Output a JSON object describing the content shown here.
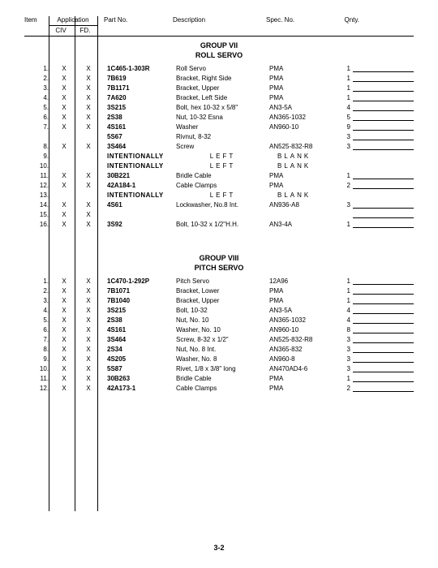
{
  "headers": {
    "item": "Item",
    "application": "Application",
    "civ": "CIV",
    "fd": "FD.",
    "partno": "Part No.",
    "description": "Description",
    "spec": "Spec. No.",
    "qty": "Qnty."
  },
  "group7": {
    "title": "GROUP VII",
    "subtitle": "ROLL SERVO",
    "rows": [
      {
        "n": "1.",
        "civ": "X",
        "fd": "X",
        "part": "1C465-1-303R",
        "desc": "Roll Servo",
        "spec": "PMA",
        "qty": "1"
      },
      {
        "n": "2.",
        "civ": "X",
        "fd": "X",
        "part": "7B619",
        "desc": "Bracket, Right Side",
        "spec": "PMA",
        "qty": "1"
      },
      {
        "n": "3.",
        "civ": "X",
        "fd": "X",
        "part": "7B1171",
        "desc": "Bracket, Upper",
        "spec": "PMA",
        "qty": "1"
      },
      {
        "n": "4.",
        "civ": "X",
        "fd": "X",
        "part": "7A620",
        "desc": "Bracket, Left Side",
        "spec": "PMA",
        "qty": "1"
      },
      {
        "n": "5.",
        "civ": "X",
        "fd": "X",
        "part": "3S215",
        "desc": "Bolt, hex 10-32 x 5/8\"",
        "spec": "AN3-5A",
        "qty": "4"
      },
      {
        "n": "6.",
        "civ": "X",
        "fd": "X",
        "part": "2S38",
        "desc": "Nut, 10-32 Esna",
        "spec": "AN365-1032",
        "qty": "5"
      },
      {
        "n": "7.",
        "civ": "X",
        "fd": "X",
        "part": "4S161",
        "desc": "Washer",
        "spec": "AN960-10",
        "qty": "9"
      },
      {
        "n": "",
        "civ": "",
        "fd": "",
        "part": "5S67",
        "desc": "Rivnut, 8-32",
        "spec": "",
        "qty": "3"
      },
      {
        "n": "8.",
        "civ": "X",
        "fd": "X",
        "part": "3S464",
        "desc": "Screw",
        "spec": "AN525-832-R8",
        "qty": "3"
      },
      {
        "n": "9.",
        "civ": "",
        "fd": "",
        "part": "INTENTIONALLY",
        "desc": "LEFT",
        "spec": "BLANK",
        "qty": "",
        "blank": true
      },
      {
        "n": "10.",
        "civ": "",
        "fd": "",
        "part": "INTENTIONALLY",
        "desc": "LEFT",
        "spec": "BLANK",
        "qty": "",
        "blank": true
      },
      {
        "n": "11.",
        "civ": "X",
        "fd": "X",
        "part": "30B221",
        "desc": "Bridle Cable",
        "spec": "PMA",
        "qty": "1"
      },
      {
        "n": "12.",
        "civ": "X",
        "fd": "X",
        "part": "42A184-1",
        "desc": "Cable Clamps",
        "spec": "PMA",
        "qty": "2"
      },
      {
        "n": "13.",
        "civ": "",
        "fd": "",
        "part": "INTENTIONALLY",
        "desc": "LEFT",
        "spec": "BLANK",
        "qty": "",
        "blank": true
      },
      {
        "n": "14.",
        "civ": "X",
        "fd": "X",
        "part": "4S61",
        "desc": "Lockwasher, No.8 Int.",
        "spec": "AN936-A8",
        "qty": "3"
      },
      {
        "n": "15.",
        "civ": "X",
        "fd": "X",
        "part": "",
        "desc": "",
        "spec": "",
        "qty": ""
      },
      {
        "n": "16.",
        "civ": "X",
        "fd": "X",
        "part": "3S92",
        "desc": "Bolt, 10-32 x 1/2\"H.H.",
        "spec": "AN3-4A",
        "qty": "1"
      }
    ]
  },
  "group8": {
    "title": "GROUP VIII",
    "subtitle": "PITCH SERVO",
    "rows": [
      {
        "n": "1.",
        "civ": "X",
        "fd": "X",
        "part": "1C470-1-292P",
        "desc": "Pitch Servo",
        "spec": "12A96",
        "qty": "1"
      },
      {
        "n": "2.",
        "civ": "X",
        "fd": "X",
        "part": "7B1071",
        "desc": "Bracket, Lower",
        "spec": "PMA",
        "qty": "1"
      },
      {
        "n": "3.",
        "civ": "X",
        "fd": "X",
        "part": "7B1040",
        "desc": "Bracket, Upper",
        "spec": "PMA",
        "qty": "1"
      },
      {
        "n": "4.",
        "civ": "X",
        "fd": "X",
        "part": "3S215",
        "desc": "Bolt, 10-32",
        "spec": "AN3-5A",
        "qty": "4"
      },
      {
        "n": "5.",
        "civ": "X",
        "fd": "X",
        "part": "2S38",
        "desc": "Nut, No. 10",
        "spec": "AN365-1032",
        "qty": "4"
      },
      {
        "n": "6.",
        "civ": "X",
        "fd": "X",
        "part": "4S161",
        "desc": "Washer, No. 10",
        "spec": "AN960-10",
        "qty": "8"
      },
      {
        "n": "7.",
        "civ": "X",
        "fd": "X",
        "part": "3S464",
        "desc": "Screw,  8-32 x 1/2\"",
        "spec": "AN525-832-R8",
        "qty": "3"
      },
      {
        "n": "8.",
        "civ": "X",
        "fd": "X",
        "part": "2S34",
        "desc": "Nut, No. 8 Int.",
        "spec": "AN365-832",
        "qty": "3"
      },
      {
        "n": "9.",
        "civ": "X",
        "fd": "X",
        "part": "4S205",
        "desc": "Washer, No. 8",
        "spec": "AN960-8",
        "qty": "3"
      },
      {
        "n": "10.",
        "civ": "X",
        "fd": "X",
        "part": "5S87",
        "desc": "Rivet, 1/8 x 3/8\" long",
        "spec": "AN470AD4-6",
        "qty": "3"
      },
      {
        "n": "11.",
        "civ": "X",
        "fd": "X",
        "part": "30B263",
        "desc": "Bridle Cable",
        "spec": "PMA",
        "qty": "1"
      },
      {
        "n": "12.",
        "civ": "X",
        "fd": "X",
        "part": "42A173-1",
        "desc": "Cable Clamps",
        "spec": "PMA",
        "qty": "2"
      }
    ]
  },
  "page_number": "3-2"
}
